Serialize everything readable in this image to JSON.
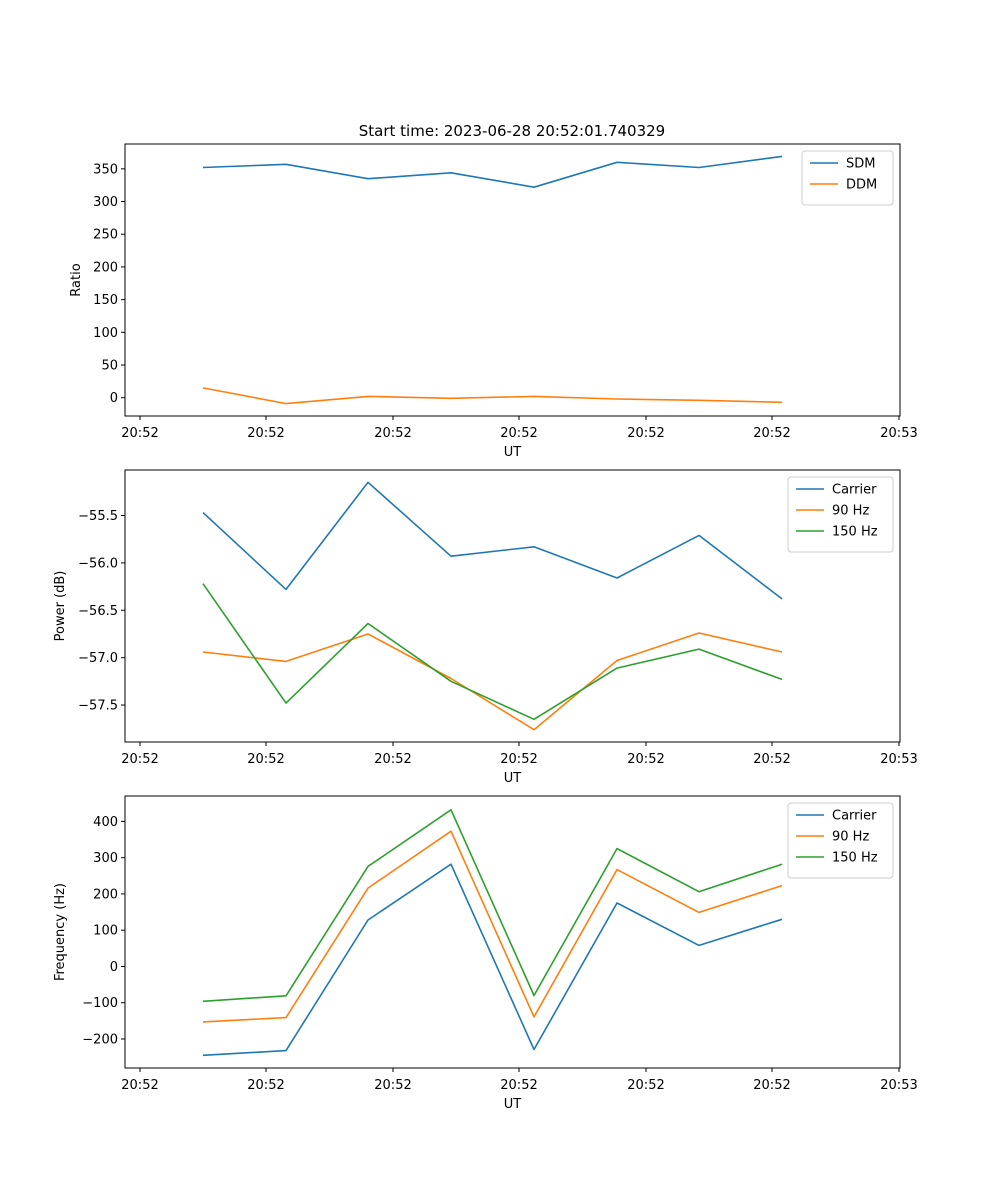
{
  "figure": {
    "title": "Start time: 2023-06-28 20:52:01.740329"
  },
  "chart_data": [
    {
      "type": "line",
      "xlabel": "UT",
      "ylabel": "Ratio",
      "xticks": [
        "20:52",
        "20:52",
        "20:52",
        "20:52",
        "20:52",
        "20:52",
        "20:53"
      ],
      "yticks": [
        "0",
        "50",
        "100",
        "150",
        "200",
        "250",
        "300",
        "350"
      ],
      "ylim": [
        -28,
        388
      ],
      "grid": false,
      "legend_position": "top-right",
      "series": [
        {
          "name": "SDM",
          "color": "#1f77b4",
          "values": [
            352,
            357,
            335,
            344,
            322,
            360,
            352,
            369
          ]
        },
        {
          "name": "DDM",
          "color": "#ff7f0e",
          "values": [
            15,
            -9,
            2,
            -1,
            2,
            -2,
            -4,
            -7
          ]
        }
      ]
    },
    {
      "type": "line",
      "xlabel": "UT",
      "ylabel": "Power (dB)",
      "xticks": [
        "20:52",
        "20:52",
        "20:52",
        "20:52",
        "20:52",
        "20:52",
        "20:53"
      ],
      "yticks": [
        "−57.5",
        "−57.0",
        "−56.5",
        "−56.0",
        "−55.5"
      ],
      "ylim": [
        -57.89,
        -55.02
      ],
      "grid": false,
      "legend_position": "top-right",
      "series": [
        {
          "name": "Carrier",
          "color": "#1f77b4",
          "values": [
            -55.47,
            -56.28,
            -55.15,
            -55.93,
            -55.83,
            -56.16,
            -55.71,
            -56.38
          ]
        },
        {
          "name": "90 Hz",
          "color": "#ff7f0e",
          "values": [
            -56.94,
            -57.04,
            -56.75,
            -57.22,
            -57.76,
            -57.03,
            -56.74,
            -56.94
          ]
        },
        {
          "name": "150 Hz",
          "color": "#2ca02c",
          "values": [
            -56.22,
            -57.48,
            -56.64,
            -57.25,
            -57.65,
            -57.11,
            -56.91,
            -57.23
          ]
        }
      ]
    },
    {
      "type": "line",
      "xlabel": "UT",
      "ylabel": "Frequency (Hz)",
      "xticks": [
        "20:52",
        "20:52",
        "20:52",
        "20:52",
        "20:52",
        "20:52",
        "20:53"
      ],
      "yticks": [
        "−200",
        "−100",
        "0",
        "100",
        "200",
        "300",
        "400"
      ],
      "ylim": [
        -280,
        470
      ],
      "grid": false,
      "legend_position": "top-right",
      "series": [
        {
          "name": "Carrier",
          "color": "#1f77b4",
          "values": [
            -245,
            -232,
            128,
            282,
            -229,
            175,
            58,
            130
          ]
        },
        {
          "name": "90 Hz",
          "color": "#ff7f0e",
          "values": [
            -153,
            -141,
            216,
            373,
            -139,
            267,
            149,
            223
          ]
        },
        {
          "name": "150 Hz",
          "color": "#2ca02c",
          "values": [
            -96,
            -81,
            276,
            432,
            -80,
            325,
            206,
            282
          ]
        }
      ]
    }
  ]
}
